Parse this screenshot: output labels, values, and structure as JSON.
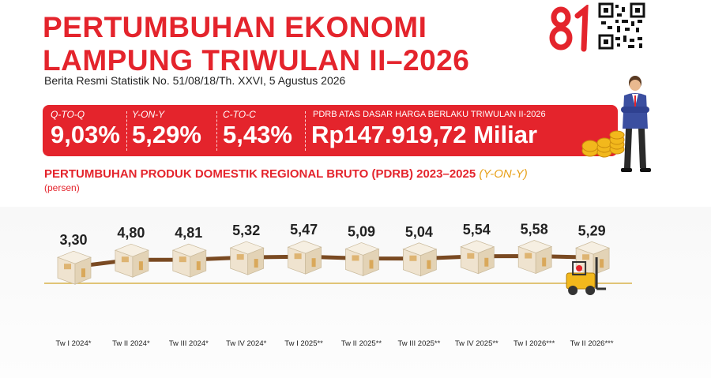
{
  "header": {
    "title_line1": "PERTUMBUHAN EKONOMI",
    "title_line2": "LAMPUNG TRIWULAN II–2026",
    "subtitle": "Berita Resmi Statistik  No. 51/08/18/Th. XXVI, 5 Agustus 2026",
    "logo_text": "81"
  },
  "banner": {
    "qtoq_label": "Q-TO-Q",
    "qtoq_value": "9,03%",
    "yony_label": "Y-ON-Y",
    "yony_value": "5,29%",
    "ctoc_label": "C-TO-C",
    "ctoc_value": "5,43%",
    "pdrb_label": "PDRB ATAS DASAR HARGA BERLAKU TRIWULAN II-2026",
    "pdrb_value": "Rp147.919,72 Miliar"
  },
  "colors": {
    "accent": "#e4242c",
    "gold": "#e8a21c",
    "line": "#7a4a22",
    "box": "#efe3cf"
  },
  "chart_data": {
    "type": "line",
    "title": "PERTUMBUHAN PRODUK DOMESTIK REGIONAL BRUTO (PDRB) 2023–2025",
    "title_suffix": "(Y-ON-Y)",
    "ylabel": "(persen)",
    "categories": [
      "Tw I 2024*",
      "Tw II 2024*",
      "Tw III 2024*",
      "Tw IV 2024*",
      "Tw I 2025**",
      "Tw II 2025**",
      "Tw III 2025**",
      "Tw IV 2025**",
      "Tw I 2026***",
      "Tw II 2026***"
    ],
    "value_labels": [
      "3,30",
      "4,80",
      "4,81",
      "5,32",
      "5,47",
      "5,09",
      "5,04",
      "5,54",
      "5,58",
      "5,29"
    ],
    "values": [
      3.3,
      4.8,
      4.81,
      5.32,
      5.47,
      5.09,
      5.04,
      5.54,
      5.58,
      5.29
    ],
    "ylim": [
      3.0,
      6.0
    ],
    "grid": false,
    "legend": "none"
  }
}
